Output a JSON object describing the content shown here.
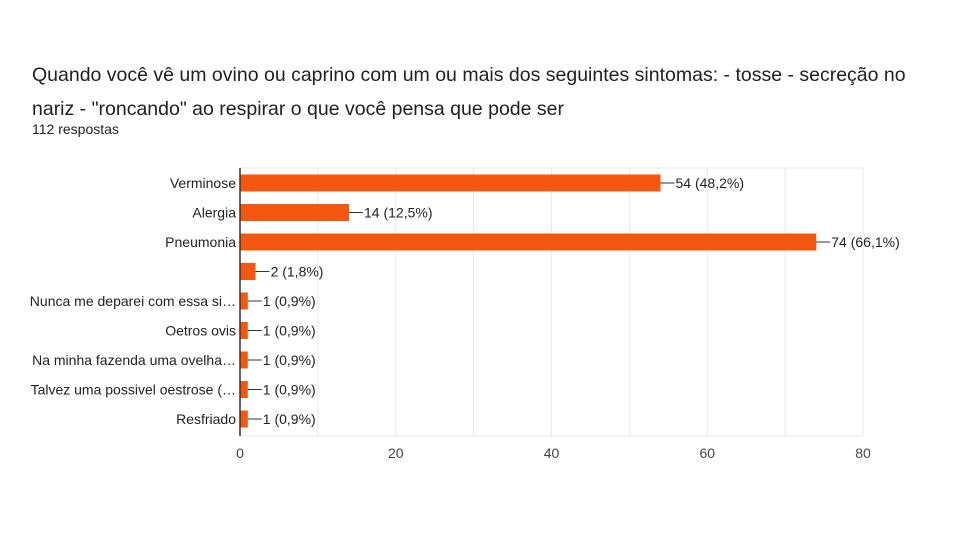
{
  "header": {
    "title": "Quando você vê um ovino ou caprino com um ou mais dos seguintes sintomas: - tosse - secreção no nariz - \"roncando\" ao respirar o que você pensa que pode ser",
    "responses": "112 respostas"
  },
  "colors": {
    "bar": "#f4570f",
    "grid": "#e8e8e8",
    "axis": "#333333"
  },
  "chart_data": {
    "type": "bar",
    "orientation": "horizontal",
    "categories": [
      "Verminose",
      "Alergia",
      "Pneumonia",
      "",
      "Nunca me deparei com essa si…",
      "Oetros ovis",
      "Na minha fazenda uma ovelha…",
      "Talvez uma possivel oestrose (…",
      "Resfriado"
    ],
    "values": [
      54,
      14,
      74,
      2,
      1,
      1,
      1,
      1,
      1
    ],
    "data_labels": [
      "54 (48,2%)",
      "14 (12,5%)",
      "74 (66,1%)",
      "2 (1,8%)",
      "1 (0,9%)",
      "1 (0,9%)",
      "1 (0,9%)",
      "1 (0,9%)",
      "1 (0,9%)"
    ],
    "xlim": [
      0,
      80
    ],
    "xticks": [
      0,
      20,
      40,
      60,
      80
    ],
    "grid": true,
    "legend": "none"
  }
}
